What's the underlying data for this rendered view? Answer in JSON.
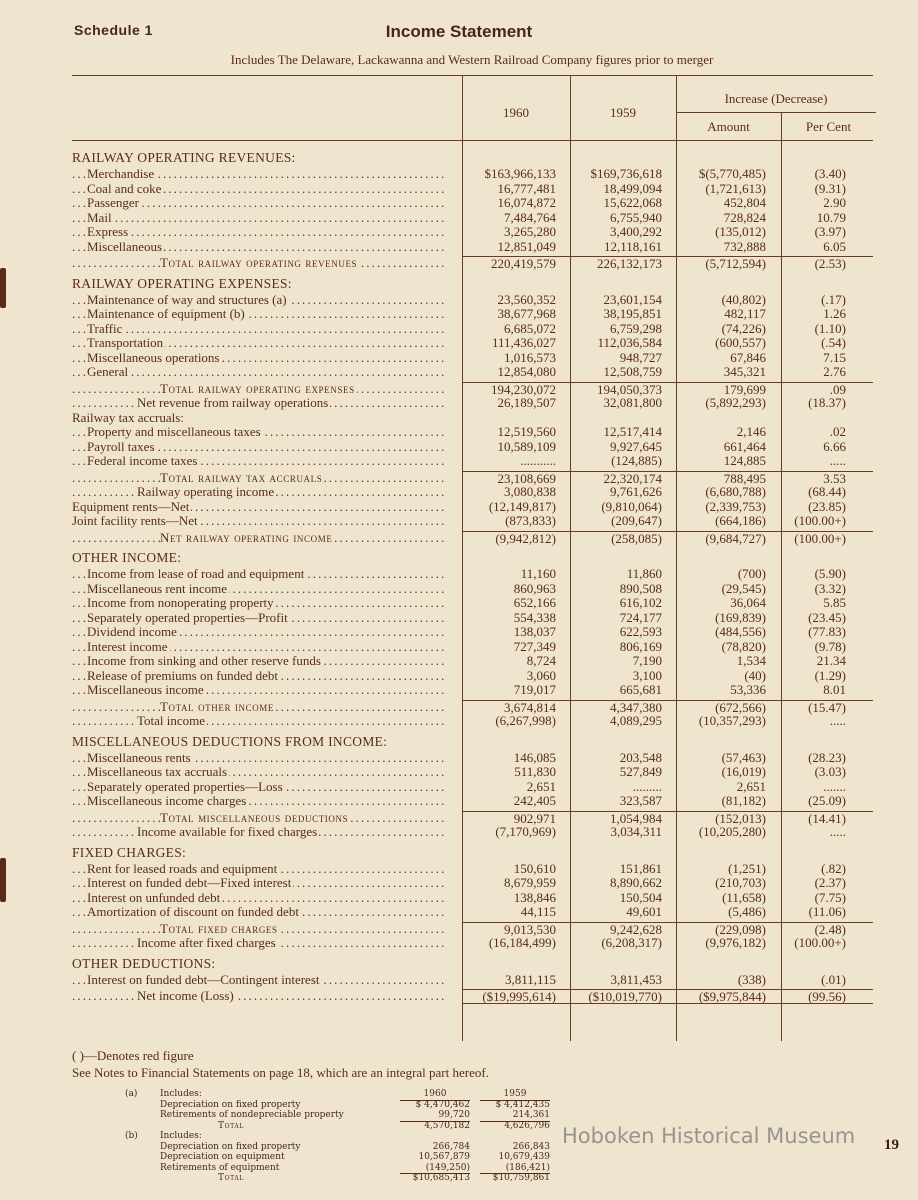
{
  "header": {
    "schedule": "Schedule 1",
    "title": "Income Statement",
    "subtitle": "Includes The Delaware, Lackawanna and Western Railroad Company figures prior to merger"
  },
  "columns": {
    "y1960": "1960",
    "y1959": "1959",
    "increase": "Increase (Decrease)",
    "amount": "Amount",
    "percent": "Per Cent"
  },
  "rows": [
    {
      "label": "RAILWAY OPERATING REVENUES:",
      "style": "section"
    },
    {
      "label": "Merchandise",
      "c1960": "$163,966,133",
      "c1959": "$169,736,618",
      "amount": "$(5,770,485)",
      "pct": "(3.40)",
      "style": "item"
    },
    {
      "label": "Coal and coke",
      "c1960": "16,777,481",
      "c1959": "18,499,094",
      "amount": "(1,721,613)",
      "pct": "(9.31)",
      "style": "item"
    },
    {
      "label": "Passenger",
      "c1960": "16,074,872",
      "c1959": "15,622,068",
      "amount": "452,804",
      "pct": "2.90",
      "style": "item"
    },
    {
      "label": "Mail",
      "c1960": "7,484,764",
      "c1959": "6,755,940",
      "amount": "728,824",
      "pct": "10.79",
      "style": "item"
    },
    {
      "label": "Express",
      "c1960": "3,265,280",
      "c1959": "3,400,292",
      "amount": "(135,012)",
      "pct": "(3.97)",
      "style": "item"
    },
    {
      "label": "Miscellaneous",
      "c1960": "12,851,049",
      "c1959": "12,118,161",
      "amount": "732,888",
      "pct": "6.05",
      "style": "item"
    },
    {
      "label": "Total railway operating revenues",
      "c1960": "220,419,579",
      "c1959": "226,132,173",
      "amount": "(5,712,594)",
      "pct": "(2.53)",
      "style": "total"
    },
    {
      "label": "RAILWAY OPERATING EXPENSES:",
      "style": "section"
    },
    {
      "label": "Maintenance of way and structures (a)",
      "c1960": "23,560,352",
      "c1959": "23,601,154",
      "amount": "(40,802)",
      "pct": "(.17)",
      "style": "item"
    },
    {
      "label": "Maintenance of equipment (b)",
      "c1960": "38,677,968",
      "c1959": "38,195,851",
      "amount": "482,117",
      "pct": "1.26",
      "style": "item"
    },
    {
      "label": "Traffic",
      "c1960": "6,685,072",
      "c1959": "6,759,298",
      "amount": "(74,226)",
      "pct": "(1.10)",
      "style": "item"
    },
    {
      "label": "Transportation",
      "c1960": "111,436,027",
      "c1959": "112,036,584",
      "amount": "(600,557)",
      "pct": "(.54)",
      "style": "item"
    },
    {
      "label": "Miscellaneous operations",
      "c1960": "1,016,573",
      "c1959": "948,727",
      "amount": "67,846",
      "pct": "7.15",
      "style": "item"
    },
    {
      "label": "General",
      "c1960": "12,854,080",
      "c1959": "12,508,759",
      "amount": "345,321",
      "pct": "2.76",
      "style": "item"
    },
    {
      "label": "Total railway operating expenses",
      "c1960": "194,230,072",
      "c1959": "194,050,373",
      "amount": "179,699",
      "pct": ".09",
      "style": "total"
    },
    {
      "label": "Net revenue from railway operations",
      "c1960": "26,189,507",
      "c1959": "32,081,800",
      "amount": "(5,892,293)",
      "pct": "(18.37)",
      "style": "sub"
    },
    {
      "label": "Railway tax accruals:",
      "style": "plain"
    },
    {
      "label": "Property and miscellaneous taxes",
      "c1960": "12,519,560",
      "c1959": "12,517,414",
      "amount": "2,146",
      "pct": ".02",
      "style": "item"
    },
    {
      "label": "Payroll taxes",
      "c1960": "10,589,109",
      "c1959": "9,927,645",
      "amount": "661,464",
      "pct": "6.66",
      "style": "item"
    },
    {
      "label": "Federal income taxes",
      "c1960": "...........",
      "c1959": "(124,885)",
      "amount": "124,885",
      "pct": ".....",
      "style": "item"
    },
    {
      "label": "Total railway tax accruals",
      "c1960": "23,108,669",
      "c1959": "22,320,174",
      "amount": "788,495",
      "pct": "3.53",
      "style": "total"
    },
    {
      "label": "Railway operating income",
      "c1960": "3,080,838",
      "c1959": "9,761,626",
      "amount": "(6,680,788)",
      "pct": "(68.44)",
      "style": "sub"
    },
    {
      "label": "Equipment rents—Net",
      "c1960": "(12,149,817)",
      "c1959": "(9,810,064)",
      "amount": "(2,339,753)",
      "pct": "(23.85)",
      "style": "plainitem"
    },
    {
      "label": "Joint facility rents—Net",
      "c1960": "(873,833)",
      "c1959": "(209,647)",
      "amount": "(664,186)",
      "pct": "(100.00+)",
      "style": "plainitem"
    },
    {
      "label": "Net railway operating income",
      "c1960": "(9,942,812)",
      "c1959": "(258,085)",
      "amount": "(9,684,727)",
      "pct": "(100.00+)",
      "style": "total"
    },
    {
      "label": "OTHER INCOME:",
      "style": "section"
    },
    {
      "label": "Income from lease of road and equipment",
      "c1960": "11,160",
      "c1959": "11,860",
      "amount": "(700)",
      "pct": "(5.90)",
      "style": "item"
    },
    {
      "label": "Miscellaneous rent income",
      "c1960": "860,963",
      "c1959": "890,508",
      "amount": "(29,545)",
      "pct": "(3.32)",
      "style": "item"
    },
    {
      "label": "Income from nonoperating property",
      "c1960": "652,166",
      "c1959": "616,102",
      "amount": "36,064",
      "pct": "5.85",
      "style": "item"
    },
    {
      "label": "Separately operated properties—Profit",
      "c1960": "554,338",
      "c1959": "724,177",
      "amount": "(169,839)",
      "pct": "(23.45)",
      "style": "item"
    },
    {
      "label": "Dividend income",
      "c1960": "138,037",
      "c1959": "622,593",
      "amount": "(484,556)",
      "pct": "(77.83)",
      "style": "item"
    },
    {
      "label": "Interest income",
      "c1960": "727,349",
      "c1959": "806,169",
      "amount": "(78,820)",
      "pct": "(9.78)",
      "style": "item"
    },
    {
      "label": "Income from sinking and other reserve funds",
      "c1960": "8,724",
      "c1959": "7,190",
      "amount": "1,534",
      "pct": "21.34",
      "style": "item"
    },
    {
      "label": "Release of premiums on funded debt",
      "c1960": "3,060",
      "c1959": "3,100",
      "amount": "(40)",
      "pct": "(1.29)",
      "style": "item"
    },
    {
      "label": "Miscellaneous income",
      "c1960": "719,017",
      "c1959": "665,681",
      "amount": "53,336",
      "pct": "8.01",
      "style": "item"
    },
    {
      "label": "Total other income",
      "c1960": "3,674,814",
      "c1959": "4,347,380",
      "amount": "(672,566)",
      "pct": "(15.47)",
      "style": "total"
    },
    {
      "label": "Total income",
      "c1960": "(6,267,998)",
      "c1959": "4,089,295",
      "amount": "(10,357,293)",
      "pct": ".....",
      "style": "sub"
    },
    {
      "label": "MISCELLANEOUS DEDUCTIONS FROM INCOME:",
      "style": "section"
    },
    {
      "label": "Miscellaneous rents",
      "c1960": "146,085",
      "c1959": "203,548",
      "amount": "(57,463)",
      "pct": "(28.23)",
      "style": "item"
    },
    {
      "label": "Miscellaneous tax accruals",
      "c1960": "511,830",
      "c1959": "527,849",
      "amount": "(16,019)",
      "pct": "(3.03)",
      "style": "item"
    },
    {
      "label": "Separately operated properties—Loss",
      "c1960": "2,651",
      "c1959": ".........",
      "amount": "2,651",
      "pct": ".......",
      "style": "item"
    },
    {
      "label": "Miscellaneous income charges",
      "c1960": "242,405",
      "c1959": "323,587",
      "amount": "(81,182)",
      "pct": "(25.09)",
      "style": "item"
    },
    {
      "label": "Total miscellaneous deductions",
      "c1960": "902,971",
      "c1959": "1,054,984",
      "amount": "(152,013)",
      "pct": "(14.41)",
      "style": "total"
    },
    {
      "label": "Income available for fixed charges",
      "c1960": "(7,170,969)",
      "c1959": "3,034,311",
      "amount": "(10,205,280)",
      "pct": ".....",
      "style": "sub"
    },
    {
      "label": "FIXED CHARGES:",
      "style": "section"
    },
    {
      "label": "Rent for leased roads and equipment",
      "c1960": "150,610",
      "c1959": "151,861",
      "amount": "(1,251)",
      "pct": "(.82)",
      "style": "item"
    },
    {
      "label": "Interest on funded debt—Fixed interest",
      "c1960": "8,679,959",
      "c1959": "8,890,662",
      "amount": "(210,703)",
      "pct": "(2.37)",
      "style": "item"
    },
    {
      "label": "Interest on unfunded debt",
      "c1960": "138,846",
      "c1959": "150,504",
      "amount": "(11,658)",
      "pct": "(7.75)",
      "style": "item"
    },
    {
      "label": "Amortization of discount on funded debt",
      "c1960": "44,115",
      "c1959": "49,601",
      "amount": "(5,486)",
      "pct": "(11.06)",
      "style": "item"
    },
    {
      "label": "Total fixed charges",
      "c1960": "9,013,530",
      "c1959": "9,242,628",
      "amount": "(229,098)",
      "pct": "(2.48)",
      "style": "total"
    },
    {
      "label": "Income after fixed charges",
      "c1960": "(16,184,499)",
      "c1959": "(6,208,317)",
      "amount": "(9,976,182)",
      "pct": "(100.00+)",
      "style": "sub"
    },
    {
      "label": "OTHER DEDUCTIONS:",
      "style": "section"
    },
    {
      "label": "Interest on funded debt—Contingent interest",
      "c1960": "3,811,115",
      "c1959": "3,811,453",
      "amount": "(338)",
      "pct": "(.01)",
      "style": "item"
    },
    {
      "label": "Net income (Loss)",
      "c1960": "($19,995,614)",
      "c1959": "($10,019,770)",
      "amount": "($9,975,844)",
      "pct": "(99.56)",
      "style": "final"
    }
  ],
  "notes": {
    "red_figure": "(    )—Denotes red figure",
    "see_notes": "See Notes to Financial Statements on page 18, which are an integral part hereof."
  },
  "footnotes": {
    "y1960": "1960",
    "y1959": "1959",
    "a": {
      "key": "(a)",
      "heading": "Includes:",
      "lines": [
        {
          "label": "Depreciation on fixed property",
          "c1960": "$ 4,470,462",
          "c1959": "$ 4,412,435"
        },
        {
          "label": "Retirements of nondepreciable property",
          "c1960": "99,720",
          "c1959": "214,361"
        }
      ],
      "total": {
        "label": "Total",
        "c1960": "4,570,182",
        "c1959": "4,626,796"
      }
    },
    "b": {
      "key": "(b)",
      "heading": "Includes:",
      "lines": [
        {
          "label": "Depreciation on fixed property",
          "c1960": "266,784",
          "c1959": "266,843"
        },
        {
          "label": "Depreciation on equipment",
          "c1960": "10,567,879",
          "c1959": "10,679,439"
        },
        {
          "label": "Retirements of equipment",
          "c1960": "(149,250)",
          "c1959": "(186,421)"
        }
      ],
      "total": {
        "label": "Total",
        "c1960": "$10,685,413",
        "c1959": "$10,759,861"
      }
    }
  },
  "watermark": "Hoboken Historical Museum",
  "page_number": "19",
  "colors": {
    "paper": "#efe5cf",
    "ink": "#5b2a1c"
  }
}
